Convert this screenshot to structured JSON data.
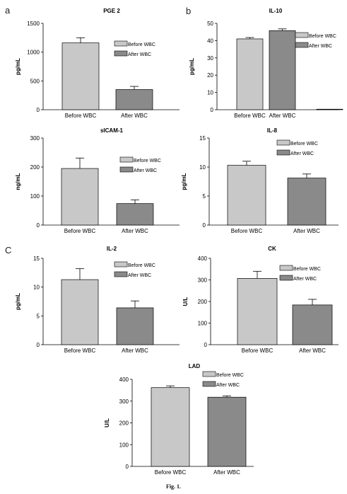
{
  "panel_letters": [
    "a",
    "b",
    "C"
  ],
  "caption": "Fig. 1.",
  "colors": {
    "before": "#c8c8c8",
    "after": "#8a8a8a",
    "axis": "#000000"
  },
  "chart_data": [
    {
      "type": "bar",
      "title": "PGE 2",
      "ylabel": "pg/mL",
      "ylim": [
        0,
        1500
      ],
      "yticks": [
        0,
        500,
        1000,
        1500
      ],
      "categories": [
        "Before WBC",
        "After WBC"
      ],
      "values": [
        1160,
        350
      ],
      "errors": [
        90,
        55
      ],
      "legend": [
        "Before WBC",
        "After WBC"
      ]
    },
    {
      "type": "bar",
      "title": "IL-10",
      "ylabel": "pg/mL",
      "ylim": [
        0,
        50
      ],
      "yticks": [
        0,
        10,
        20,
        30,
        40,
        50
      ],
      "categories": [
        "Before WBC",
        "After WBC",
        ""
      ],
      "values": [
        41,
        45.8,
        0.3
      ],
      "errors": [
        0.8,
        1.0,
        0
      ],
      "legend": [
        "Before WBC",
        "After WBC"
      ]
    },
    {
      "type": "bar",
      "title": "sICAM-1",
      "ylabel": "ng/mL",
      "ylim": [
        0,
        300
      ],
      "yticks": [
        0,
        100,
        200,
        300
      ],
      "categories": [
        "Before WBC",
        "After WBC"
      ],
      "values": [
        195,
        74
      ],
      "errors": [
        36,
        13
      ],
      "legend": [
        "Before WBC",
        "After WBC"
      ]
    },
    {
      "type": "bar",
      "title": "IL-8",
      "ylabel": "pg/mL",
      "ylim": [
        0,
        15
      ],
      "yticks": [
        0,
        5,
        10,
        15
      ],
      "categories": [
        "Before WBC",
        "After WBC"
      ],
      "values": [
        10.3,
        8.1
      ],
      "errors": [
        0.7,
        0.7
      ],
      "legend": [
        "Before WBC",
        "After WBC"
      ]
    },
    {
      "type": "bar",
      "title": "IL-2",
      "ylabel": "pg/mL",
      "ylim": [
        0,
        15
      ],
      "yticks": [
        0,
        5,
        10,
        15
      ],
      "categories": [
        "Before WBC",
        "After WBC"
      ],
      "values": [
        11.3,
        6.4
      ],
      "errors": [
        1.9,
        1.2
      ],
      "legend": [
        "Before WBC",
        "After WBC"
      ]
    },
    {
      "type": "bar",
      "title": "CK",
      "ylabel": "U/L",
      "ylim": [
        0,
        400
      ],
      "yticks": [
        0,
        100,
        200,
        300,
        400
      ],
      "categories": [
        "Before WBC",
        "After WBC"
      ],
      "values": [
        307,
        184
      ],
      "errors": [
        33,
        26
      ],
      "legend": [
        "Before WBC",
        "After WBC"
      ]
    },
    {
      "type": "bar",
      "title": "LAD",
      "ylabel": "U/L",
      "ylim": [
        0,
        400
      ],
      "yticks": [
        0,
        100,
        200,
        300,
        400
      ],
      "categories": [
        "Before WBC",
        "After WBC"
      ],
      "values": [
        362,
        318
      ],
      "errors": [
        8,
        6
      ],
      "legend": [
        "Before WBC",
        "After WBC"
      ]
    }
  ]
}
